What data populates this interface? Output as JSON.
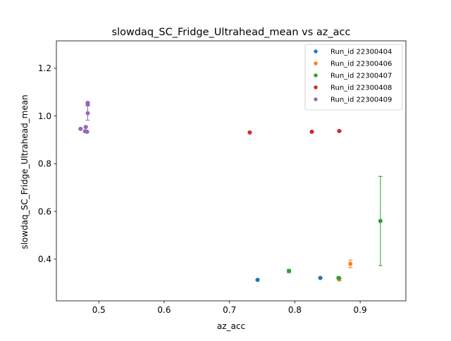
{
  "chart_data": {
    "type": "scatter",
    "title": "slowdaq_SC_Fridge_Ultrahead_mean vs az_acc",
    "xlabel": "az_acc",
    "ylabel": "slowdaq_SC_Fridge_Ultrahead_mean",
    "xlim": [
      0.435,
      0.97
    ],
    "ylim": [
      0.225,
      1.315
    ],
    "xticks": [
      0.5,
      0.6,
      0.7,
      0.8,
      0.9
    ],
    "xtick_labels": [
      "0.5",
      "0.6",
      "0.7",
      "0.8",
      "0.9"
    ],
    "yticks": [
      0.4,
      0.6,
      0.8,
      1.0,
      1.2
    ],
    "ytick_labels": [
      "0.4",
      "0.6",
      "0.8",
      "1.0",
      "1.2"
    ],
    "grid": false,
    "legend_position": "top-right",
    "series": [
      {
        "name": "Run_id 22300404",
        "color": "#1f77b4",
        "points": [
          {
            "x": 0.743,
            "y": 0.313,
            "err": 0.002
          },
          {
            "x": 0.839,
            "y": 0.321,
            "err": 0.002
          },
          {
            "x": 0.868,
            "y": 0.318,
            "err": 0.002
          }
        ]
      },
      {
        "name": "Run_id 22300406",
        "color": "#ff7f0e",
        "points": [
          {
            "x": 0.868,
            "y": 0.315,
            "err": 0.006
          },
          {
            "x": 0.885,
            "y": 0.38,
            "err": 0.016
          }
        ]
      },
      {
        "name": "Run_id 22300407",
        "color": "#2ca02c",
        "points": [
          {
            "x": 0.791,
            "y": 0.35,
            "err": 0.007
          },
          {
            "x": 0.867,
            "y": 0.321,
            "err": 0.005
          },
          {
            "x": 0.931,
            "y": 0.56,
            "err": 0.187
          }
        ]
      },
      {
        "name": "Run_id 22300408",
        "color": "#d62728",
        "points": [
          {
            "x": 0.731,
            "y": 0.931,
            "err": 0.002
          },
          {
            "x": 0.826,
            "y": 0.934,
            "err": 0.002
          },
          {
            "x": 0.868,
            "y": 0.937,
            "err": 0.002
          }
        ]
      },
      {
        "name": "Run_id 22300409",
        "color": "#9467bd",
        "points": [
          {
            "x": 0.472,
            "y": 0.946,
            "err": 0.003
          },
          {
            "x": 0.479,
            "y": 0.936,
            "err": 0.002
          },
          {
            "x": 0.48,
            "y": 0.954,
            "err": 0.003
          },
          {
            "x": 0.482,
            "y": 0.934,
            "err": 0.002
          },
          {
            "x": 0.483,
            "y": 1.012,
            "err": 0.03
          },
          {
            "x": 0.483,
            "y": 1.049,
            "err": 0.005
          },
          {
            "x": 0.483,
            "y": 1.055,
            "err": 0.003
          }
        ]
      }
    ]
  }
}
